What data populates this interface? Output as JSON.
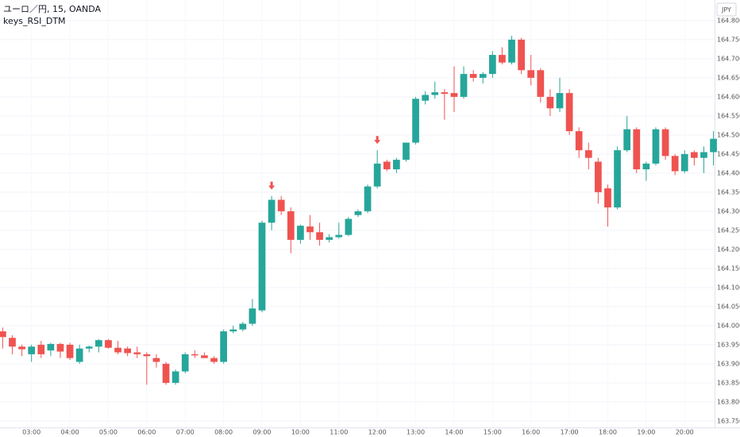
{
  "chart_data": {
    "type": "candlestick",
    "title": "ユーロ／円, 15, OANDA",
    "subtitle": "keys_RSI_DTM",
    "currency": "JPY",
    "up_color": "#26a69a",
    "down_color": "#ef5350",
    "signal_color": "#ef5350",
    "grid": true,
    "x": [
      2.25,
      2.5,
      2.75,
      3,
      3.25,
      3.5,
      3.75,
      4,
      4.25,
      4.5,
      4.75,
      5,
      5.25,
      5.5,
      5.75,
      6,
      6.25,
      6.5,
      6.75,
      7,
      7.25,
      7.5,
      7.75,
      8,
      8.25,
      8.5,
      8.75,
      9,
      9.25,
      9.5,
      9.75,
      10,
      10.25,
      10.5,
      10.75,
      11,
      11.25,
      11.5,
      11.75,
      12,
      12.25,
      12.5,
      12.75,
      13,
      13.25,
      13.5,
      13.75,
      14,
      14.25,
      14.5,
      14.75,
      15,
      15.25,
      15.5,
      15.75,
      16,
      16.25,
      16.5,
      16.75,
      17,
      17.25,
      17.5,
      17.75,
      18,
      18.25,
      18.5,
      18.75,
      19,
      19.25,
      19.5,
      19.75,
      20,
      20.25,
      20.5,
      20.75
    ],
    "open": [
      163.985,
      163.968,
      163.945,
      163.925,
      163.95,
      163.935,
      163.952,
      163.95,
      163.905,
      163.94,
      163.945,
      163.962,
      163.942,
      163.94,
      163.93,
      163.925,
      163.915,
      163.9,
      163.85,
      163.88,
      163.925,
      163.922,
      163.915,
      163.905,
      163.985,
      163.99,
      164.005,
      164.04,
      164.27,
      164.33,
      164.3,
      164.225,
      164.26,
      164.245,
      164.225,
      164.232,
      164.238,
      164.29,
      164.3,
      164.365,
      164.43,
      164.41,
      164.435,
      164.48,
      164.59,
      164.605,
      164.612,
      164.61,
      164.6,
      164.66,
      164.65,
      164.66,
      164.71,
      164.69,
      164.75,
      164.67,
      164.67,
      164.6,
      164.57,
      164.61,
      164.51,
      164.46,
      164.43,
      164.36,
      164.31,
      164.46,
      164.515,
      164.41,
      164.425,
      164.515,
      164.445,
      164.405,
      164.455,
      164.44,
      164.455
    ],
    "high": [
      163.995,
      163.975,
      163.95,
      163.95,
      163.96,
      163.955,
      163.955,
      163.955,
      163.95,
      163.948,
      163.965,
      163.965,
      163.96,
      163.945,
      163.945,
      163.93,
      163.925,
      163.905,
      163.885,
      163.93,
      163.935,
      163.93,
      163.92,
      163.99,
      164,
      164.01,
      164.07,
      164.275,
      164.34,
      164.34,
      164.31,
      164.265,
      164.29,
      164.27,
      164.24,
      164.27,
      164.285,
      164.305,
      164.37,
      164.46,
      164.435,
      164.44,
      164.48,
      164.6,
      164.615,
      164.64,
      164.62,
      164.68,
      164.68,
      164.67,
      164.665,
      164.72,
      164.73,
      164.76,
      164.755,
      164.71,
      164.675,
      164.62,
      164.65,
      164.62,
      164.52,
      164.48,
      164.44,
      164.37,
      164.47,
      164.55,
      164.52,
      164.43,
      164.52,
      164.52,
      164.45,
      164.46,
      164.46,
      164.47,
      164.51
    ],
    "low": [
      163.94,
      163.925,
      163.92,
      163.905,
      163.915,
      163.92,
      163.915,
      163.91,
      163.9,
      163.93,
      163.93,
      163.94,
      163.925,
      163.92,
      163.915,
      163.845,
      163.89,
      163.845,
      163.845,
      163.875,
      163.915,
      163.915,
      163.9,
      163.9,
      163.98,
      163.985,
      164,
      164.035,
      164.25,
      164.29,
      164.19,
      164.215,
      164.225,
      164.21,
      164.218,
      164.228,
      164.235,
      164.285,
      164.295,
      164.36,
      164.405,
      164.4,
      164.43,
      164.475,
      164.58,
      164.595,
      164.54,
      164.56,
      164.595,
      164.64,
      164.635,
      164.65,
      164.685,
      164.685,
      164.66,
      164.63,
      164.585,
      164.55,
      164.56,
      164.5,
      164.44,
      164.41,
      164.32,
      164.26,
      164.305,
      164.455,
      164.4,
      164.38,
      164.42,
      164.435,
      164.395,
      164.4,
      164.42,
      164.4,
      164.42
    ],
    "close": [
      163.97,
      163.945,
      163.938,
      163.945,
      163.925,
      163.952,
      163.932,
      163.915,
      163.94,
      163.945,
      163.962,
      163.942,
      163.93,
      163.928,
      163.925,
      163.92,
      163.905,
      163.85,
      163.88,
      163.925,
      163.922,
      163.915,
      163.905,
      163.985,
      163.99,
      164.005,
      164.045,
      164.27,
      164.33,
      164.3,
      164.225,
      164.262,
      164.245,
      164.225,
      164.232,
      164.238,
      164.28,
      164.3,
      164.365,
      164.425,
      164.41,
      164.435,
      164.48,
      164.595,
      164.605,
      164.612,
      164.608,
      164.6,
      164.66,
      164.65,
      164.66,
      164.71,
      164.69,
      164.75,
      164.67,
      164.65,
      164.6,
      164.57,
      164.61,
      164.51,
      164.46,
      164.44,
      164.35,
      164.31,
      164.46,
      164.515,
      164.41,
      164.425,
      164.515,
      164.445,
      164.405,
      164.45,
      164.44,
      164.455,
      164.49
    ],
    "signal_x": [
      9.25,
      12
    ],
    "xlim": [
      2.18,
      20.78
    ],
    "ylim": [
      163.733,
      164.854
    ],
    "xticks": [
      {
        "value": 3,
        "label": "03:00"
      },
      {
        "value": 4,
        "label": "04:00"
      },
      {
        "value": 5,
        "label": "05:00"
      },
      {
        "value": 6,
        "label": "06:00"
      },
      {
        "value": 7,
        "label": "07:00"
      },
      {
        "value": 8,
        "label": "08:00"
      },
      {
        "value": 9,
        "label": "09:00"
      },
      {
        "value": 10,
        "label": "10:00"
      },
      {
        "value": 11,
        "label": "11:00"
      },
      {
        "value": 12,
        "label": "12:00"
      },
      {
        "value": 13,
        "label": "13:00"
      },
      {
        "value": 14,
        "label": "14:00"
      },
      {
        "value": 15,
        "label": "15:00"
      },
      {
        "value": 16,
        "label": "16:00"
      },
      {
        "value": 17,
        "label": "17:00"
      },
      {
        "value": 18,
        "label": "18:00"
      },
      {
        "value": 19,
        "label": "19:00"
      },
      {
        "value": 20,
        "label": "20:00"
      }
    ],
    "yticks": [
      {
        "value": 163.75,
        "label": "163.750"
      },
      {
        "value": 163.8,
        "label": "163.800"
      },
      {
        "value": 163.85,
        "label": "163.850"
      },
      {
        "value": 163.9,
        "label": "163.900"
      },
      {
        "value": 163.95,
        "label": "163.950"
      },
      {
        "value": 164,
        "label": "164.000"
      },
      {
        "value": 164.05,
        "label": "164.050"
      },
      {
        "value": 164.1,
        "label": "164.100"
      },
      {
        "value": 164.15,
        "label": "164.150"
      },
      {
        "value": 164.2,
        "label": "164.200"
      },
      {
        "value": 164.25,
        "label": "164.250"
      },
      {
        "value": 164.3,
        "label": "164.300"
      },
      {
        "value": 164.35,
        "label": "164.350"
      },
      {
        "value": 164.4,
        "label": "164.400"
      },
      {
        "value": 164.45,
        "label": "164.450"
      },
      {
        "value": 164.5,
        "label": "164.500"
      },
      {
        "value": 164.55,
        "label": "164.550"
      },
      {
        "value": 164.6,
        "label": "164.600"
      },
      {
        "value": 164.65,
        "label": "164.650"
      },
      {
        "value": 164.7,
        "label": "164.700"
      },
      {
        "value": 164.75,
        "label": "164.750"
      },
      {
        "value": 164.8,
        "label": "164.800"
      }
    ]
  }
}
